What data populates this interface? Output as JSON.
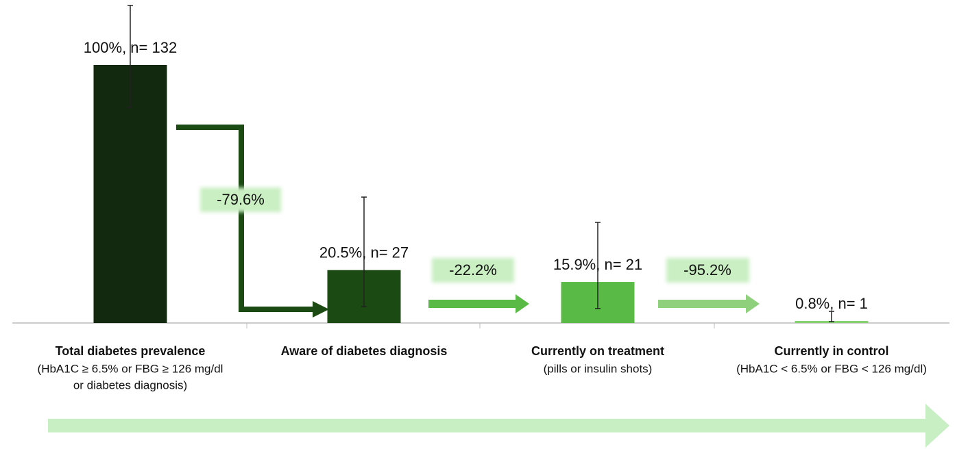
{
  "chart_data": {
    "type": "bar",
    "categories": [
      "Total diabetes prevalence",
      "Aware of diabetes diagnosis",
      "Currently on treatment",
      "Currently in control"
    ],
    "category_notes": [
      [
        "(HbA1C ≥ 6.5% or FBG ≥ 126 mg/dl",
        "or diabetes diagnosis)"
      ],
      null,
      [
        "(pills or insulin shots)"
      ],
      [
        "(HbA1C < 6.5% or FBG < 126 mg/dl)"
      ]
    ],
    "values": [
      100,
      20.5,
      15.9,
      0.8
    ],
    "value_labels": [
      "100%, n= 132",
      "20.5%, n= 27",
      "15.9%, n= 21",
      "0.8%, n= 1"
    ],
    "ci_low": [
      83.6,
      6.4,
      5.6,
      0.5
    ],
    "ci_high": [
      123.1,
      48.8,
      39.0,
      4.5
    ],
    "colors": [
      "#13290f",
      "#1b4a13",
      "#5aba46",
      "#86d072"
    ],
    "annotations": [
      {
        "text": "-79.6%"
      },
      {
        "text": "-22.2%"
      },
      {
        "text": "-95.2%"
      }
    ],
    "ylim": [
      0,
      125
    ]
  }
}
